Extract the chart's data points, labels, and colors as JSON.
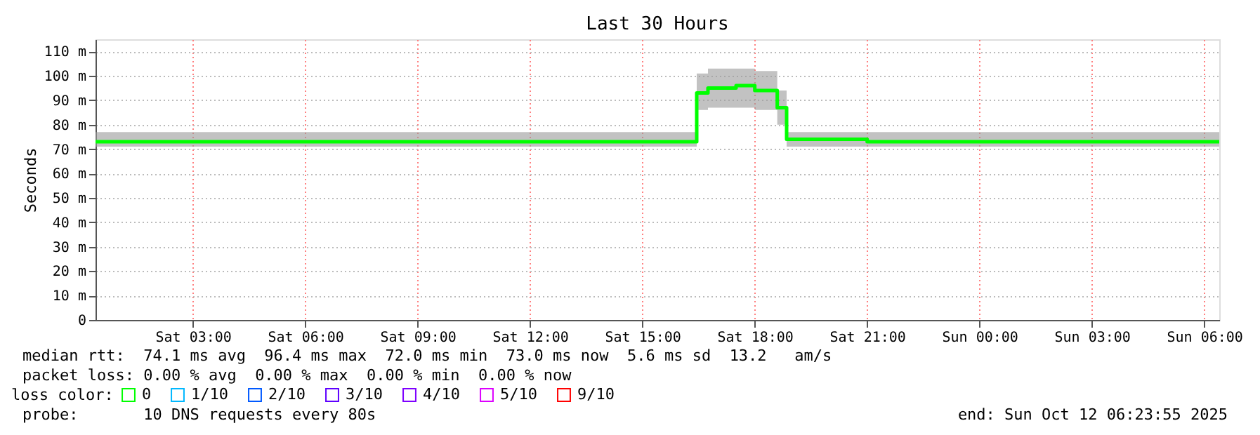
{
  "chart_data": {
    "type": "step",
    "title": "Last 30 Hours",
    "ylabel": "Seconds",
    "x": [
      "2025-10-11T00:24",
      "2025-10-11T03:00",
      "2025-10-11T06:00",
      "2025-10-11T09:00",
      "2025-10-11T12:00",
      "2025-10-11T15:00",
      "2025-10-11T16:27",
      "2025-10-11T16:45",
      "2025-10-11T17:30",
      "2025-10-11T18:00",
      "2025-10-11T18:36",
      "2025-10-11T18:51",
      "2025-10-11T21:00",
      "2025-10-12T00:00",
      "2025-10-12T03:00",
      "2025-10-12T06:24"
    ],
    "xlim": [
      "2025-10-11T00:24",
      "2025-10-12T06:24"
    ],
    "xticks": [
      {
        "value": "2025-10-11T03:00",
        "label": "Sat 03:00"
      },
      {
        "value": "2025-10-11T06:00",
        "label": "Sat 06:00"
      },
      {
        "value": "2025-10-11T09:00",
        "label": "Sat 09:00"
      },
      {
        "value": "2025-10-11T12:00",
        "label": "Sat 12:00"
      },
      {
        "value": "2025-10-11T15:00",
        "label": "Sat 15:00"
      },
      {
        "value": "2025-10-11T18:00",
        "label": "Sat 18:00"
      },
      {
        "value": "2025-10-11T21:00",
        "label": "Sat 21:00"
      },
      {
        "value": "2025-10-12T00:00",
        "label": "Sun 00:00"
      },
      {
        "value": "2025-10-12T03:00",
        "label": "Sun 03:00"
      },
      {
        "value": "2025-10-12T06:00",
        "label": "Sun 06:00"
      }
    ],
    "ylim": [
      0,
      115
    ],
    "yticks": [
      0,
      {
        "value": 10,
        "label": "10 m"
      },
      {
        "value": 20,
        "label": "20 m"
      },
      {
        "value": 30,
        "label": "30 m"
      },
      {
        "value": 40,
        "label": "40 m"
      },
      {
        "value": 50,
        "label": "50 m"
      },
      {
        "value": 60,
        "label": "60 m"
      },
      {
        "value": 70,
        "label": "70 m"
      },
      {
        "value": 80,
        "label": "80 m"
      },
      {
        "value": 90,
        "label": "90 m"
      },
      {
        "value": 100,
        "label": "100 m"
      },
      {
        "value": 110,
        "label": "110 m"
      }
    ],
    "series": [
      {
        "name": "0",
        "color": "#00ff00",
        "values": [
          73,
          73,
          73,
          73,
          73,
          73,
          93,
          95,
          96,
          94,
          87,
          74,
          73,
          73,
          73,
          73
        ],
        "lower": [
          71,
          71,
          71,
          71,
          71,
          71,
          86,
          87,
          87,
          86,
          80,
          71,
          71,
          71,
          71,
          71
        ],
        "upper": [
          77,
          77,
          77,
          77,
          77,
          77,
          101,
          103,
          103,
          102,
          94,
          77,
          77,
          77,
          77,
          77
        ]
      },
      {
        "name": "1/10",
        "color": "#00b8ff",
        "values": [
          null,
          null,
          null,
          null,
          null,
          null,
          null,
          null,
          null,
          null,
          null,
          null,
          null,
          null,
          null,
          null
        ]
      },
      {
        "name": "2/10",
        "color": "#0059ff",
        "values": [
          null,
          null,
          null,
          null,
          null,
          null,
          null,
          null,
          null,
          null,
          null,
          null,
          null,
          null,
          null,
          null
        ]
      },
      {
        "name": "3/10",
        "color": "#5e00ff",
        "values": [
          null,
          null,
          null,
          null,
          null,
          null,
          null,
          null,
          null,
          null,
          null,
          null,
          null,
          null,
          null,
          null
        ]
      },
      {
        "name": "4/10",
        "color": "#7e00ff",
        "values": [
          null,
          null,
          null,
          null,
          null,
          null,
          null,
          null,
          null,
          null,
          null,
          null,
          null,
          null,
          null,
          null
        ]
      },
      {
        "name": "5/10",
        "color": "#dd00ff",
        "values": [
          null,
          null,
          null,
          null,
          null,
          null,
          null,
          null,
          null,
          null,
          null,
          null,
          null,
          null,
          null,
          null
        ]
      },
      {
        "name": "9/10",
        "color": "#ff0000",
        "values": [
          null,
          null,
          null,
          null,
          null,
          null,
          null,
          null,
          null,
          null,
          null,
          null,
          null,
          null,
          null,
          null
        ]
      }
    ],
    "legend_title": "loss color:",
    "legend": "bottom",
    "grid": true,
    "annotations": [
      "median rtt:  74.1 ms avg  96.4 ms max  72.0 ms min  73.0 ms now  5.6 ms sd  13.2   am/s",
      "packet loss: 0.00 % avg  0.00 % max  0.00 % min  0.00 % now",
      "probe:       10 DNS requests every 80s",
      "end: Sun Oct 12 06:23:55 2025"
    ]
  }
}
